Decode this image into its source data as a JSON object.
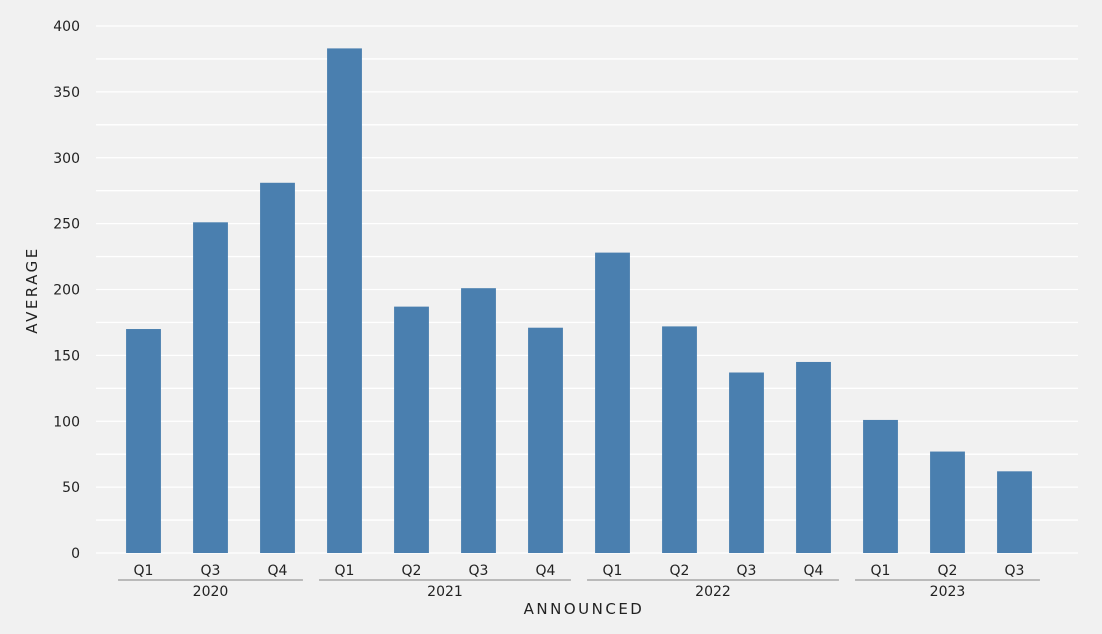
{
  "chart_data": {
    "type": "bar",
    "title": "",
    "xlabel": "ANNOUNCED",
    "ylabel": "AVERAGE",
    "ylim": [
      0,
      400
    ],
    "yticks": [
      0,
      50,
      100,
      150,
      200,
      250,
      300,
      350,
      400
    ],
    "grid": true,
    "legend": "none",
    "bar_color": "#4a7faf",
    "grid_color": "#ffffff",
    "groups": [
      {
        "label": "2020",
        "categories": [
          "Q1",
          "Q3",
          "Q4"
        ],
        "values": [
          170,
          251,
          281
        ]
      },
      {
        "label": "2021",
        "categories": [
          "Q1",
          "Q2",
          "Q3",
          "Q4"
        ],
        "values": [
          383,
          187,
          201,
          171
        ]
      },
      {
        "label": "2022",
        "categories": [
          "Q1",
          "Q2",
          "Q3",
          "Q4"
        ],
        "values": [
          228,
          172,
          137,
          145
        ]
      },
      {
        "label": "2023",
        "categories": [
          "Q1",
          "Q2",
          "Q3"
        ],
        "values": [
          101,
          77,
          62
        ]
      }
    ]
  }
}
